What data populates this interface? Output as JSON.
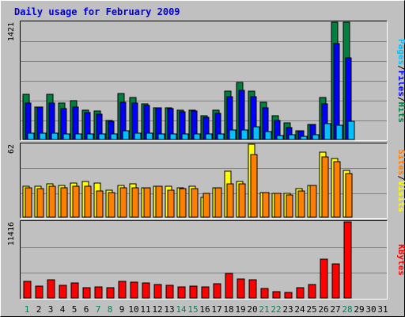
{
  "chart_data": {
    "type": "bar",
    "title": "Daily usage for February 2009",
    "days": [
      "1",
      "2",
      "3",
      "4",
      "5",
      "6",
      "7",
      "8",
      "9",
      "10",
      "11",
      "12",
      "13",
      "14",
      "15",
      "16",
      "17",
      "18",
      "19",
      "20",
      "21",
      "22",
      "23",
      "24",
      "25",
      "26",
      "27",
      "28",
      "29",
      "30",
      "31"
    ],
    "weekend_days": [
      "1",
      "7",
      "8",
      "14",
      "15",
      "21",
      "22",
      "28"
    ],
    "colors": {
      "hits": "#008040",
      "files": "#0000FF",
      "pages": "#00C0FF",
      "visits": "#FFFF00",
      "sites": "#FF8000",
      "kbytes": "#FF0000",
      "weekday_label": "#000000",
      "weekend_label": "#00805C",
      "plot_background": "#C0C0C0",
      "grid": "#808080",
      "title": "#0000CC"
    },
    "panels": [
      {
        "id": "hits",
        "ymax_label": "1421",
        "ylim": [
          0,
          1421
        ],
        "series": [
          {
            "name": "Hits",
            "key": "hits",
            "values": [
              550,
              390,
              550,
              440,
              470,
              360,
              345,
              230,
              560,
              505,
              430,
              385,
              380,
              355,
              360,
              285,
              360,
              585,
              695,
              590,
              450,
              285,
              205,
              105,
              185,
              505,
              1421,
              1421,
              0,
              0,
              0
            ]
          },
          {
            "name": "Files",
            "key": "files",
            "values": [
              445,
              390,
              440,
              370,
              390,
              330,
              305,
              225,
              450,
              445,
              410,
              385,
              375,
              335,
              345,
              270,
              320,
              515,
              600,
              520,
              380,
              230,
              145,
              105,
              180,
              430,
              1165,
              985,
              0,
              0,
              0
            ]
          },
          {
            "name": "Pages",
            "key": "pages",
            "values": [
              75,
              75,
              75,
              70,
              70,
              70,
              70,
              70,
              105,
              80,
              75,
              70,
              65,
              65,
              65,
              70,
              70,
              115,
              115,
              150,
              95,
              45,
              55,
              40,
              60,
              190,
              175,
              225,
              0,
              0,
              0
            ]
          }
        ],
        "label_text": [
          "Pages",
          "/",
          "Files",
          "/",
          "Hits"
        ]
      },
      {
        "id": "visits",
        "ymax_label": "62",
        "ylim": [
          0,
          62
        ],
        "series": [
          {
            "name": "Visits",
            "key": "visits",
            "values": [
              26,
              26,
              28,
              27,
              29,
              30,
              29,
              23,
              27,
              28,
              25,
              26,
              26,
              25,
              26,
              17,
              25,
              39,
              30,
              62,
              21,
              20,
              20,
              24,
              27,
              55,
              50,
              40,
              0,
              0,
              0
            ]
          },
          {
            "name": "Sites",
            "key": "sites",
            "values": [
              25,
              24,
              26,
              25,
              26,
              26,
              22,
              21,
              25,
              25,
              25,
              26,
              23,
              24,
              24,
              20,
              25,
              28,
              28,
              53,
              21,
              20,
              19,
              22,
              27,
              51,
              47,
              37,
              0,
              0,
              0
            ]
          }
        ],
        "label_text": [
          "Sites",
          "/",
          "Visits"
        ]
      },
      {
        "id": "kbytes",
        "ymax_label": "11416",
        "ylim": [
          0,
          11416
        ],
        "series": [
          {
            "name": "KBytes",
            "key": "kbytes",
            "values": [
              2500,
              1750,
              2700,
              1900,
              2200,
              1500,
              1700,
              1600,
              2550,
              2350,
              2200,
              2000,
              1950,
              1650,
              1800,
              1650,
              2100,
              3700,
              2900,
              2750,
              1450,
              900,
              850,
              1550,
              2000,
              5800,
              5100,
              11416,
              0,
              0,
              0
            ]
          }
        ],
        "label_text": [
          "KBytes"
        ]
      }
    ]
  }
}
